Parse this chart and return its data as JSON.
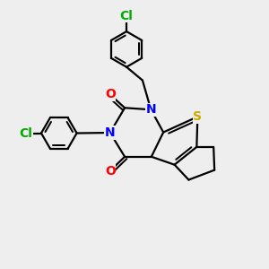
{
  "background_color": "#eeeeee",
  "atom_colors": {
    "C": "#000000",
    "N": "#0000ff",
    "O": "#ff0000",
    "S": "#ccaa00",
    "Cl": "#00aa00"
  },
  "bond_color": "#000000",
  "bond_width": 1.6,
  "font_size_atom": 10
}
